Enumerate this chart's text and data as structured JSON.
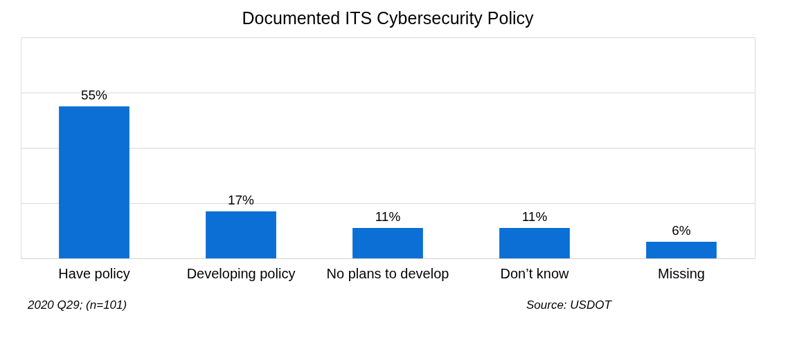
{
  "chart_data": {
    "type": "bar",
    "title": "Documented  ITS Cybersecurity  Policy",
    "categories": [
      "Have policy",
      "Developing policy",
      "No plans to develop",
      "Don’t know",
      "Missing"
    ],
    "values": [
      55,
      17,
      11,
      11,
      6
    ],
    "color": "#0b6fd5",
    "value_labels": [
      "55%",
      "17%",
      "11%",
      "11%",
      "6%"
    ],
    "ylim": [
      0,
      80
    ],
    "yticks": [
      {
        "value": 0,
        "label": null
      },
      {
        "value": 20,
        "label": null
      },
      {
        "value": 40,
        "label": null
      },
      {
        "value": 60,
        "label": null
      },
      {
        "value": 80,
        "label": null
      }
    ],
    "grid": "y",
    "tick_labels": "x",
    "annotations": [
      "2020 Q29; (n=101)",
      "Source: USDOT"
    ]
  }
}
